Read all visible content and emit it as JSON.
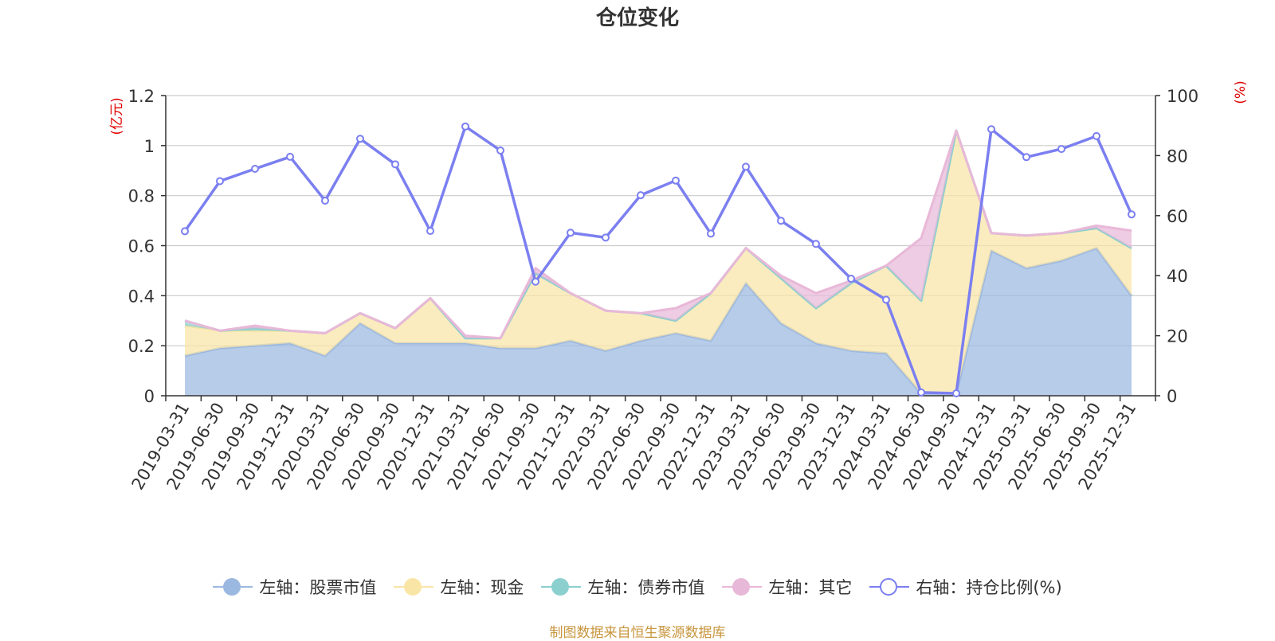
{
  "chart_data": {
    "type": "area",
    "title": "仓位变化",
    "categories": [
      "2019-03-31",
      "2019-06-30",
      "2019-09-30",
      "2019-12-31",
      "2020-03-31",
      "2020-06-30",
      "2020-09-30",
      "2020-12-31",
      "2021-03-31",
      "2021-06-30",
      "2021-09-30",
      "2021-12-31",
      "2022-03-31",
      "2022-06-30",
      "2022-09-30",
      "2022-12-31",
      "2023-03-31",
      "2023-06-30",
      "2023-09-30",
      "2023-12-31",
      "2024-03-31",
      "2024-06-30",
      "2024-09-30",
      "2024-12-31",
      "2025-03-31",
      "2025-06-30",
      "2025-09-30",
      "2025-12-31"
    ],
    "left_axis": {
      "unit_label": "(亿元)",
      "ylim": [
        0,
        1.2
      ],
      "ticks": [
        "0",
        "0.2",
        "0.4",
        "0.6",
        "0.8",
        "1",
        "1.2"
      ]
    },
    "right_axis": {
      "unit_label": "(%)",
      "ylim": [
        0,
        100
      ],
      "ticks": [
        "0",
        "20",
        "40",
        "60",
        "80",
        "100"
      ]
    },
    "stacked_series": [
      {
        "name": "左轴：股票市值",
        "color": "#9bb8e0",
        "values": [
          0.16,
          0.19,
          0.2,
          0.21,
          0.16,
          0.29,
          0.21,
          0.21,
          0.21,
          0.19,
          0.19,
          0.22,
          0.18,
          0.22,
          0.25,
          0.22,
          0.45,
          0.29,
          0.21,
          0.18,
          0.17,
          0.01,
          0.01,
          0.58,
          0.51,
          0.54,
          0.59,
          0.4
        ]
      },
      {
        "name": "左轴：现金",
        "color": "#f9e5a6",
        "values": [
          0.12,
          0.07,
          0.06,
          0.05,
          0.09,
          0.04,
          0.06,
          0.18,
          0.02,
          0.04,
          0.3,
          0.19,
          0.16,
          0.11,
          0.05,
          0.19,
          0.14,
          0.18,
          0.14,
          0.27,
          0.35,
          0.37,
          1.05,
          0.07,
          0.13,
          0.11,
          0.08,
          0.19
        ]
      },
      {
        "name": "左轴：债券市值",
        "color": "#8ccfcf",
        "values": [
          0.02,
          0.0,
          0.01,
          0.0,
          0.0,
          0.0,
          0.0,
          0.0,
          0.0,
          0.0,
          0.0,
          0.0,
          0.0,
          0.0,
          0.0,
          0.0,
          0.0,
          0.0,
          0.0,
          0.0,
          0.0,
          0.0,
          0.0,
          0.0,
          0.0,
          0.0,
          0.0,
          0.0
        ]
      },
      {
        "name": "左轴：其它",
        "color": "#e8b8d8",
        "values": [
          0.0,
          0.0,
          0.01,
          0.0,
          0.0,
          0.0,
          0.0,
          0.0,
          0.01,
          0.0,
          0.02,
          0.0,
          0.0,
          0.0,
          0.05,
          0.0,
          0.0,
          0.01,
          0.06,
          0.01,
          0.0,
          0.25,
          0.0,
          0.0,
          0.0,
          0.0,
          0.01,
          0.07
        ]
      }
    ],
    "line_series": {
      "name": "右轴：持仓比例(%)",
      "color": "#7b7ff0",
      "values": [
        54.8,
        71.5,
        75.6,
        79.6,
        65.0,
        85.6,
        77.1,
        54.9,
        89.7,
        81.7,
        38.0,
        54.3,
        52.7,
        66.8,
        71.7,
        54.0,
        76.3,
        58.3,
        50.6,
        39.0,
        32.0,
        1.1,
        0.8,
        88.8,
        79.5,
        82.2,
        86.5,
        60.4
      ]
    },
    "legend_position": "bottom-center",
    "grid": true
  },
  "source_note": "制图数据来自恒生聚源数据库"
}
